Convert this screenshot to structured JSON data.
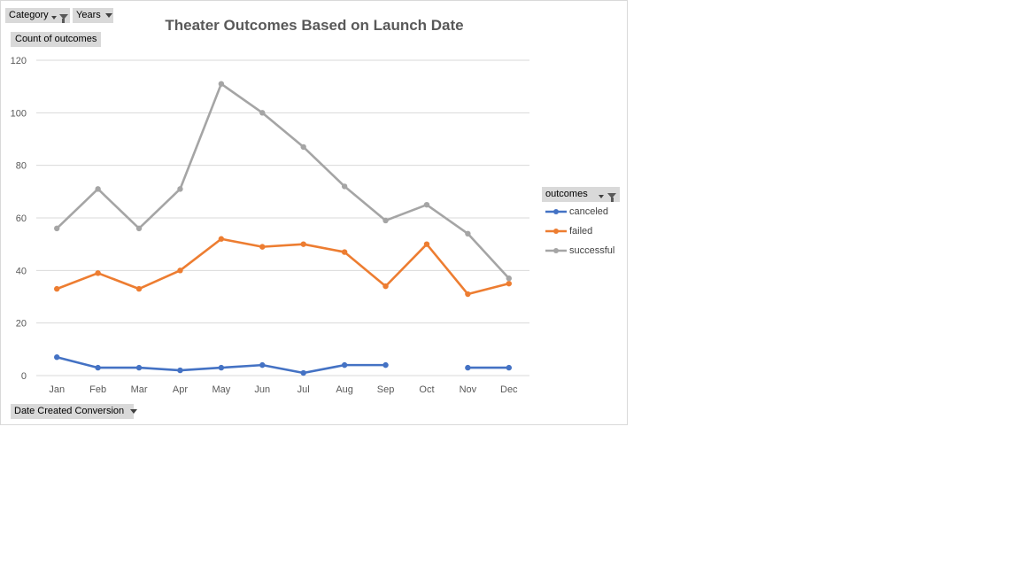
{
  "filters": {
    "category_label": "Category",
    "years_label": "Years",
    "date_field_label": "Date Created Conversion"
  },
  "legend": {
    "title": "outcomes"
  },
  "colors": {
    "canceled": "#4472c4",
    "failed": "#ed7d31",
    "successful": "#a5a5a5",
    "gridline": "#d9d9d9",
    "axis_text": "#595959",
    "title_text": "#595959"
  },
  "chart_data": {
    "type": "line",
    "title": "Theater Outcomes Based on Launch Date",
    "ylabel": "Count of outcomes",
    "xlabel": "",
    "ylim": [
      0,
      120
    ],
    "yticks": [
      0,
      20,
      40,
      60,
      80,
      100,
      120
    ],
    "grid": true,
    "legend_position": "right",
    "categories": [
      "Jan",
      "Feb",
      "Mar",
      "Apr",
      "May",
      "Jun",
      "Jul",
      "Aug",
      "Sep",
      "Oct",
      "Nov",
      "Dec"
    ],
    "series": [
      {
        "name": "canceled",
        "values": [
          7,
          3,
          3,
          2,
          3,
          4,
          1,
          4,
          4,
          null,
          3,
          3
        ]
      },
      {
        "name": "failed",
        "values": [
          33,
          39,
          33,
          40,
          52,
          49,
          50,
          47,
          34,
          50,
          31,
          35
        ]
      },
      {
        "name": "successful",
        "values": [
          56,
          71,
          56,
          71,
          111,
          100,
          87,
          72,
          59,
          65,
          54,
          37
        ]
      }
    ]
  }
}
